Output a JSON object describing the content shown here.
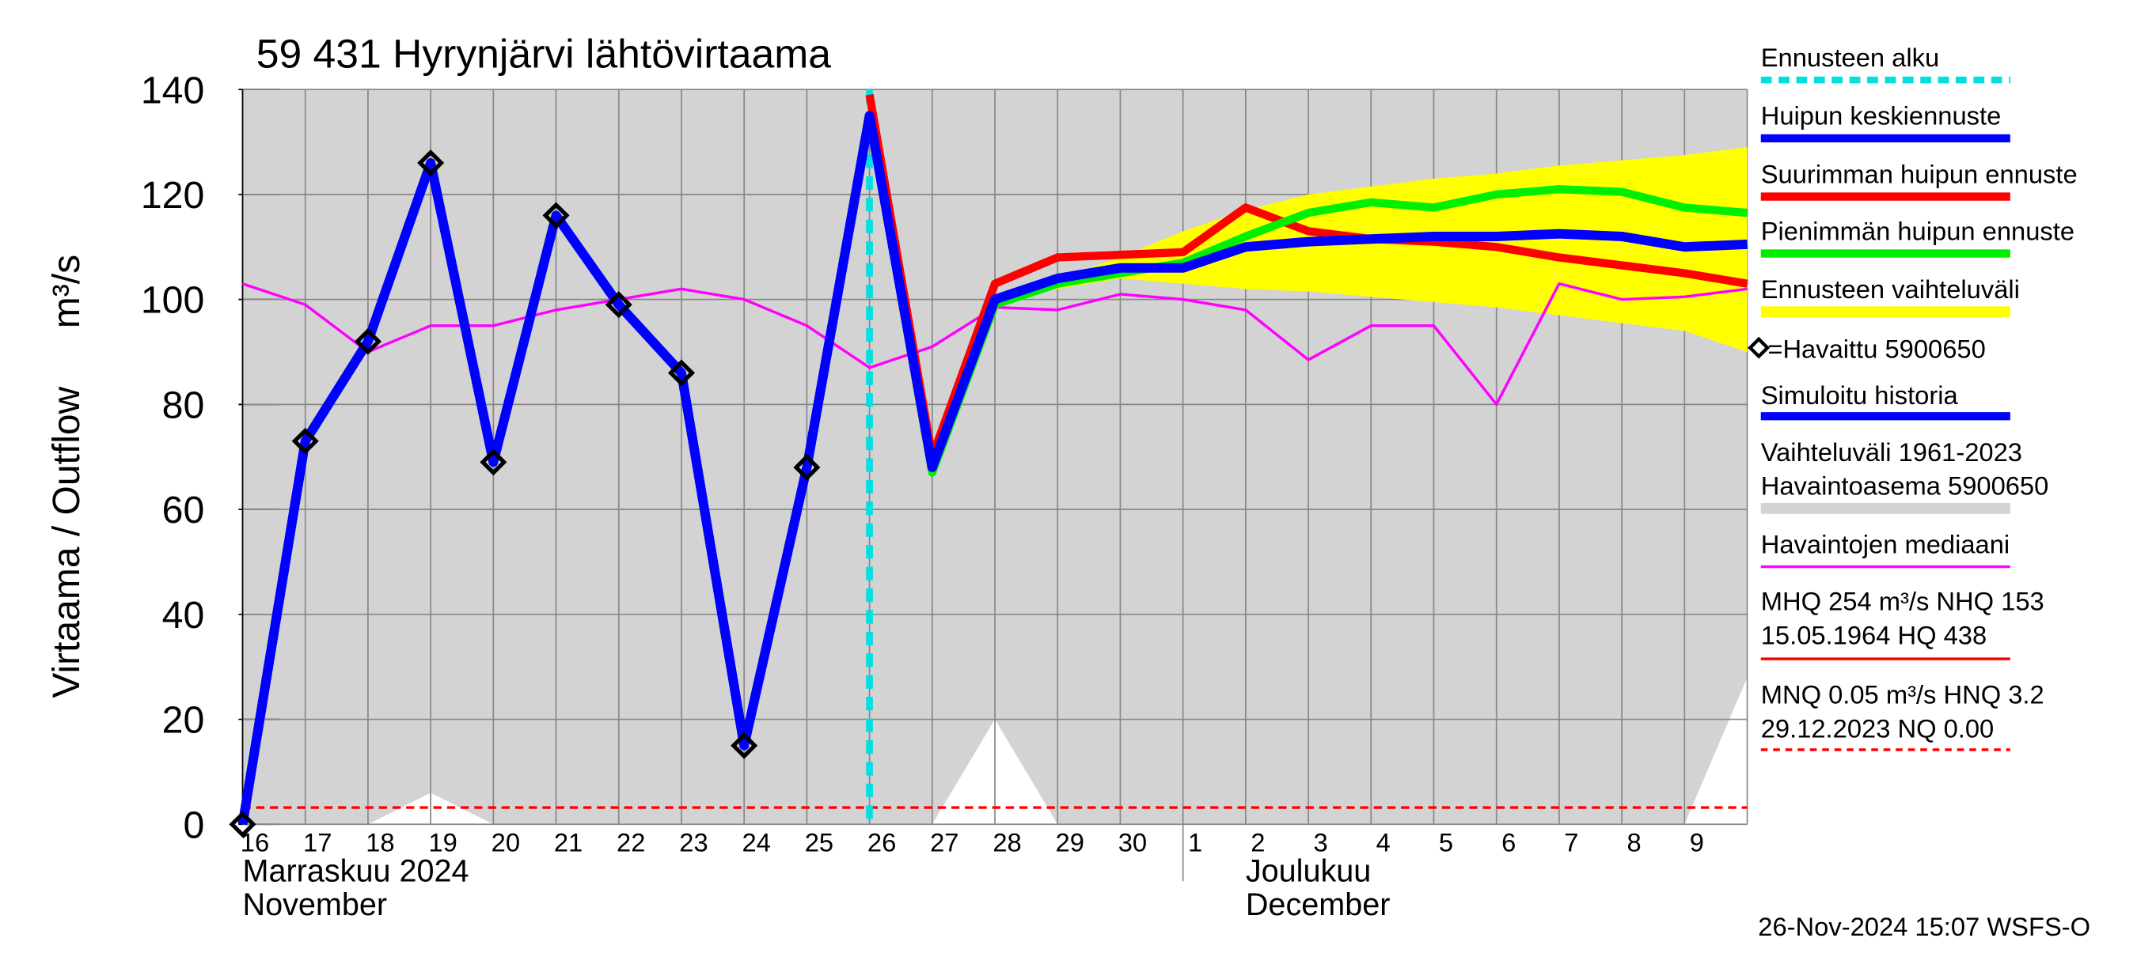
{
  "chart_data": {
    "type": "line",
    "title": "59 431 Hyrynjärvi lähtövirtaama",
    "y_label": "Virtaama / Outflow",
    "y_unit": "m³/s",
    "categories": [
      "16",
      "17",
      "18",
      "19",
      "20",
      "21",
      "22",
      "23",
      "24",
      "25",
      "26",
      "27",
      "28",
      "29",
      "30",
      "1",
      "2",
      "3",
      "4",
      "5",
      "6",
      "7",
      "8",
      "9",
      null
    ],
    "month_labels": [
      [
        "Marraskuu 2024",
        "November"
      ],
      [
        "Joulukuu",
        "December"
      ]
    ],
    "ylim": [
      0,
      140
    ],
    "yticks": [
      0,
      20,
      40,
      60,
      80,
      100,
      120,
      140
    ],
    "grid": true,
    "forecast_start": {
      "name": "Ennusteen alku",
      "color": "#00e0e0",
      "x": "26"
    },
    "range_band": {
      "name": [
        "Vaihteluväli 1961-2023",
        " Havaintoasema 5900650"
      ],
      "color": "#d3d3d3",
      "lower": [
        0,
        0,
        0,
        6,
        0,
        0,
        0,
        0,
        0,
        0,
        0,
        0,
        20,
        0,
        0,
        0,
        0,
        0,
        0,
        0,
        0,
        0,
        0,
        0,
        28
      ]
    },
    "forecast_band": {
      "name": "Ennusteen vaihteluväli",
      "color": "#ffff00",
      "lower": [
        null,
        null,
        null,
        null,
        null,
        null,
        null,
        null,
        null,
        null,
        null,
        null,
        100,
        102,
        104,
        103,
        102,
        101.5,
        100.5,
        99.5,
        98.5,
        97,
        95.5,
        94,
        90
      ],
      "upper": [
        null,
        null,
        null,
        null,
        null,
        null,
        null,
        null,
        null,
        null,
        null,
        null,
        100,
        104,
        108,
        113,
        117,
        120,
        121.5,
        123,
        124,
        125.5,
        126.5,
        127.5,
        129
      ]
    },
    "series": [
      {
        "name": "Havaintojen mediaani",
        "color": "#ff00ff",
        "width": 2,
        "values": [
          103,
          99,
          90,
          95,
          95,
          98,
          100,
          102,
          100,
          95,
          87,
          91,
          98.5,
          98,
          101,
          100,
          98,
          88.5,
          95,
          95,
          80,
          103,
          100,
          100.5,
          102
        ]
      },
      {
        "name": "Suurimman huipun ennuste",
        "color": "#ff0000",
        "width": 6,
        "values": [
          null,
          null,
          null,
          null,
          null,
          null,
          null,
          null,
          null,
          null,
          139,
          70,
          103,
          108,
          108.5,
          109,
          117.5,
          113,
          111.5,
          111,
          110,
          108,
          106.5,
          105,
          103
        ]
      },
      {
        "name": "Pienimmän huipun ennuste",
        "color": "#00ee00",
        "width": 6,
        "values": [
          null,
          null,
          null,
          null,
          null,
          null,
          null,
          null,
          null,
          null,
          135,
          67,
          99,
          103,
          105,
          107,
          112,
          116.5,
          118.5,
          117.5,
          120,
          121,
          120.5,
          117.5,
          116.5
        ]
      },
      {
        "name": "Simuloitu historia",
        "color": "#0000ff",
        "width": 7,
        "values": [
          0,
          73,
          92,
          126,
          69,
          116,
          99,
          86,
          15,
          68,
          135,
          68,
          100,
          104,
          106,
          106,
          110,
          111,
          111.5,
          112,
          112,
          112.5,
          112,
          110,
          110.5
        ]
      }
    ],
    "forecast_legend": {
      "name": "Huipun keskiennuste",
      "color": "#0000ff"
    },
    "observed": {
      "name": "=Havaittu 5900650",
      "color": "#000000",
      "values": [
        0,
        73,
        92,
        126,
        69,
        116,
        99,
        86,
        15,
        68,
        null,
        null,
        null,
        null,
        null,
        null,
        null,
        null,
        null,
        null,
        null,
        null,
        null,
        null,
        null
      ]
    },
    "hnq_line": {
      "value": 3.2,
      "color": "#ff0000"
    },
    "stats": [
      [
        "MHQ  254 m³/s NHQ  153",
        "15.05.1964 HQ  438"
      ],
      [
        "MNQ 0.05 m³/s HNQ  3.2",
        "29.12.2023 NQ 0.00"
      ]
    ],
    "footer": "26-Nov-2024 15:07 WSFS-O"
  }
}
